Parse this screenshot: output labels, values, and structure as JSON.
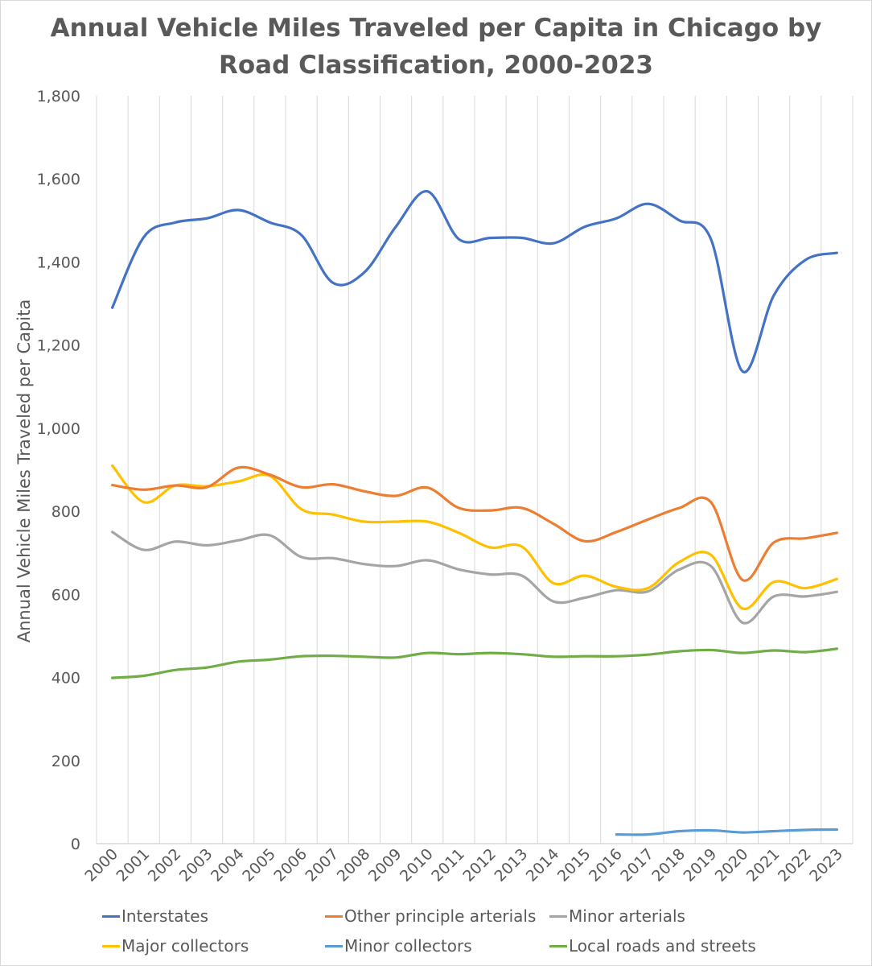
{
  "chart_data": {
    "type": "line",
    "title": "Annual Vehicle Miles Traveled per Capita in Chicago by Road Classification, 2000-2023",
    "title_lines": [
      "Annual Vehicle Miles Traveled per Capita in Chicago by",
      "Road Classification, 2000-2023"
    ],
    "xlabel": "",
    "ylabel": "Annual Vehicle Miles Traveled per Capita",
    "ylim": [
      0,
      1800
    ],
    "y_ticks": [
      0,
      200,
      400,
      600,
      800,
      1000,
      1200,
      1400,
      1600,
      1800
    ],
    "y_tick_labels": [
      "0",
      "200",
      "400",
      "600",
      "800",
      "1,000",
      "1,200",
      "1,400",
      "1,600",
      "1,800"
    ],
    "grid": "vertical",
    "legend_position": "bottom",
    "categories": [
      "2000",
      "2001",
      "2002",
      "2003",
      "2004",
      "2005",
      "2006",
      "2007",
      "2008",
      "2009",
      "2010",
      "2011",
      "2012",
      "2013",
      "2014",
      "2015",
      "2016",
      "2017",
      "2018",
      "2019",
      "2020",
      "2021",
      "2022",
      "2023"
    ],
    "series": [
      {
        "name": "Interstates",
        "color": "#4472c4",
        "values": [
          1290,
          1460,
          1495,
          1505,
          1525,
          1495,
          1465,
          1350,
          1375,
          1485,
          1570,
          1455,
          1458,
          1458,
          1445,
          1485,
          1505,
          1540,
          1500,
          1455,
          1137,
          1320,
          1405,
          1422
        ]
      },
      {
        "name": "Other principle arterials",
        "color": "#ed7d31",
        "values": [
          863,
          852,
          862,
          858,
          905,
          888,
          858,
          865,
          848,
          837,
          857,
          808,
          802,
          808,
          770,
          728,
          750,
          780,
          808,
          822,
          635,
          725,
          735,
          748
        ]
      },
      {
        "name": "Minor arterials",
        "color": "#a5a5a5",
        "values": [
          750,
          707,
          727,
          718,
          730,
          742,
          690,
          687,
          673,
          668,
          682,
          660,
          648,
          645,
          583,
          592,
          610,
          607,
          660,
          668,
          532,
          595,
          595,
          606
        ]
      },
      {
        "name": "Major collectors",
        "color": "#ffc000",
        "values": [
          910,
          822,
          862,
          860,
          872,
          885,
          805,
          792,
          775,
          775,
          775,
          748,
          713,
          715,
          627,
          645,
          618,
          615,
          678,
          695,
          566,
          630,
          615,
          637
        ]
      },
      {
        "name": "Minor collectors",
        "color": "#5b9bd5",
        "values": [
          null,
          null,
          null,
          null,
          null,
          null,
          null,
          null,
          null,
          null,
          null,
          null,
          null,
          null,
          null,
          null,
          22,
          22,
          30,
          32,
          27,
          30,
          33,
          34
        ]
      },
      {
        "name": "Local roads and streets",
        "color": "#70ad47",
        "values": [
          399,
          404,
          418,
          424,
          438,
          443,
          451,
          452,
          450,
          448,
          459,
          456,
          459,
          456,
          450,
          451,
          451,
          455,
          463,
          466,
          459,
          465,
          461,
          469
        ]
      }
    ]
  }
}
